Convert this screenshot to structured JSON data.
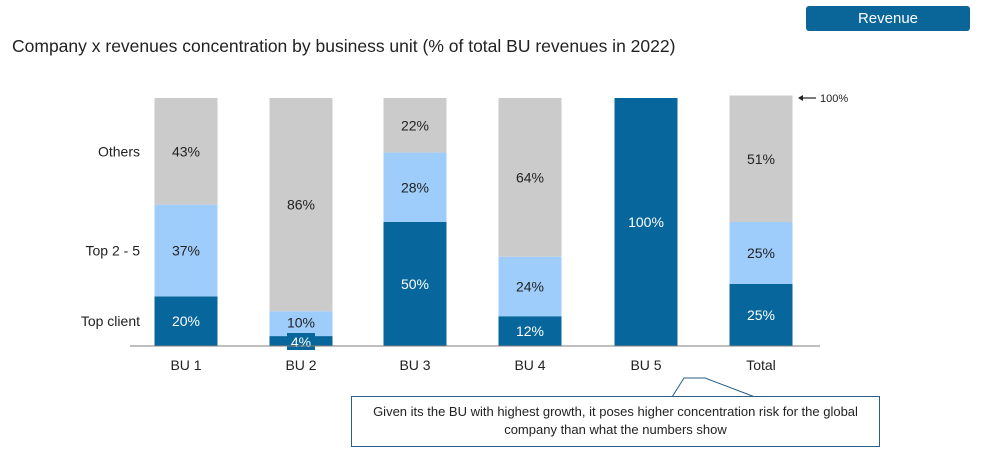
{
  "badge": "Revenue",
  "title": "Company x revenues concentration by business unit (% of total BU revenues in 2022)",
  "chart_data": {
    "type": "bar",
    "stacked": true,
    "title": "Company x revenues concentration by business unit (% of total BU revenues in 2022)",
    "categories": [
      "BU 1",
      "BU 2",
      "BU 3",
      "BU 4",
      "BU 5",
      "Total"
    ],
    "series": [
      {
        "name": "Top client",
        "values": [
          20,
          4,
          50,
          12,
          100,
          25
        ],
        "color": "#07669b",
        "label_color": "#ffffff"
      },
      {
        "name": "Top 2 - 5",
        "values": [
          37,
          10,
          28,
          24,
          0,
          25
        ],
        "color": "#9fcdfb",
        "label_color": "#222222"
      },
      {
        "name": "Others",
        "values": [
          43,
          86,
          22,
          64,
          0,
          51
        ],
        "color": "#cbcbcb",
        "label_color": "#222222"
      }
    ],
    "labels": [
      [
        "20%",
        "4%",
        "50%",
        "12%",
        "100%",
        "25%"
      ],
      [
        "37%",
        "10%",
        "28%",
        "24%",
        "",
        "25%"
      ],
      [
        "43%",
        "86%",
        "22%",
        "64%",
        "",
        "51%"
      ]
    ],
    "row_labels": [
      "Top client",
      "Top 2 - 5",
      "Others"
    ],
    "reference_label": "100%",
    "ylim": [
      0,
      100
    ]
  },
  "callout": {
    "text": "Given its the BU with highest growth, it poses higher concentration risk for the global company than what the numbers show"
  }
}
